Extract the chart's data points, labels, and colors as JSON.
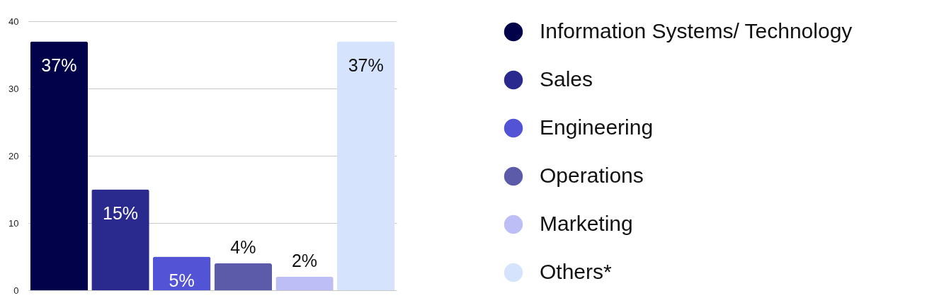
{
  "chart_data": {
    "type": "bar",
    "categories": [
      null,
      null,
      null,
      null,
      null,
      null
    ],
    "series": [
      {
        "name": "Information Systems/ Technology",
        "color": "#02024a",
        "values": [
          37,
          null,
          null,
          null,
          null,
          null
        ],
        "value_labels": [
          "37%",
          null,
          null,
          null,
          null,
          null
        ]
      },
      {
        "name": "Sales",
        "color": "#29298e",
        "values": [
          null,
          15,
          null,
          null,
          null,
          null
        ],
        "value_labels": [
          null,
          "15%",
          null,
          null,
          null,
          null
        ]
      },
      {
        "name": "Engineering",
        "color": "#5353d5",
        "values": [
          null,
          null,
          5,
          null,
          null,
          null
        ],
        "value_labels": [
          null,
          null,
          "5%",
          null,
          null,
          null
        ]
      },
      {
        "name": "Operations",
        "color": "#5b5ba9",
        "values": [
          null,
          null,
          null,
          4,
          null,
          null
        ],
        "value_labels": [
          null,
          null,
          null,
          "4%",
          null,
          null
        ]
      },
      {
        "name": "Marketing",
        "color": "#bebef6",
        "values": [
          null,
          null,
          null,
          null,
          2,
          null
        ],
        "value_labels": [
          null,
          null,
          null,
          null,
          "2%",
          null
        ]
      },
      {
        "name": "Others*",
        "color": "#d5e4fc",
        "values": [
          null,
          null,
          null,
          null,
          null,
          37
        ],
        "value_labels": [
          null,
          null,
          null,
          null,
          null,
          "37%"
        ]
      }
    ],
    "ylim": [
      0,
      40
    ],
    "yticks": [
      0,
      10,
      20,
      30,
      40
    ],
    "grid": "y",
    "legend": "right",
    "tick_labels": "y"
  }
}
